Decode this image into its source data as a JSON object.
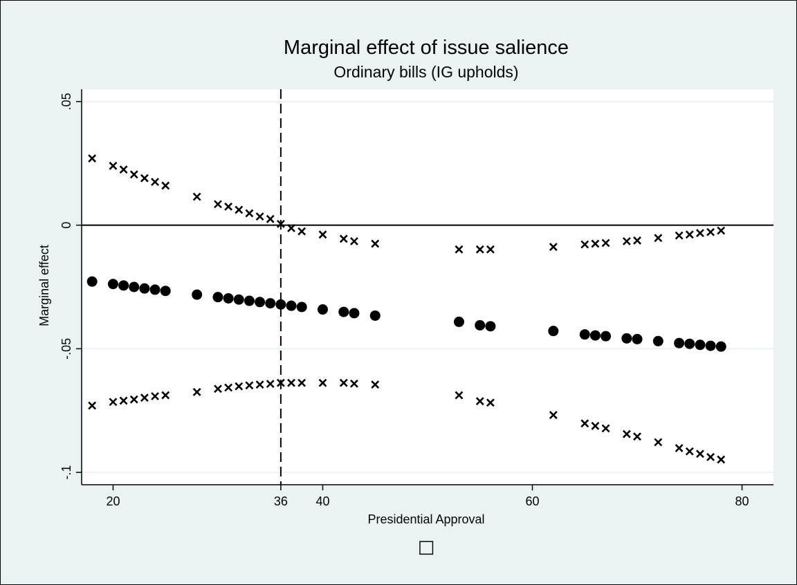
{
  "chart_data": {
    "type": "scatter",
    "title": "Marginal effect of issue salience",
    "subtitle": "Ordinary bills (IG upholds)",
    "xlabel": "Presidential Approval",
    "ylabel": "Marginal effect",
    "xlim": [
      17,
      83
    ],
    "ylim": [
      -0.105,
      0.055
    ],
    "x_ticks": [
      20,
      36,
      40,
      60,
      80
    ],
    "x_tick_labels": [
      "20",
      "36",
      "40",
      "60",
      "80"
    ],
    "y_ticks": [
      0.05,
      0,
      -0.05,
      -0.1
    ],
    "y_tick_labels": [
      ".05",
      "0",
      "-.05",
      "-.1"
    ],
    "grid": true,
    "reference_lines": {
      "horizontal_y": 0,
      "vertical_x_dashed": 36
    },
    "colors": {
      "outer_background": "#eaf2f3",
      "plot_background": "#ffffff",
      "marker": "#000000",
      "grid": "#eaf2f3"
    },
    "legend_symbol": "□",
    "x": [
      18,
      20,
      21,
      22,
      23,
      24,
      25,
      28,
      30,
      31,
      32,
      33,
      34,
      35,
      36,
      37,
      38,
      40,
      42,
      43,
      45,
      53,
      55,
      56,
      62,
      65,
      66,
      67,
      69,
      70,
      72,
      74,
      75,
      76,
      77,
      78
    ],
    "series": [
      {
        "marker": "x",
        "values": [
          0.027,
          0.024,
          0.0225,
          0.0205,
          0.019,
          0.0175,
          0.016,
          0.0115,
          0.0085,
          0.0075,
          0.0062,
          0.0048,
          0.0035,
          0.0025,
          0.0005,
          -0.0012,
          -0.0025,
          -0.0038,
          -0.0055,
          -0.0065,
          -0.0075,
          -0.0098,
          -0.0098,
          -0.0098,
          -0.0088,
          -0.0078,
          -0.0075,
          -0.0072,
          -0.0065,
          -0.0062,
          -0.0052,
          -0.0042,
          -0.0038,
          -0.0032,
          -0.0028,
          -0.0022
        ]
      },
      {
        "marker": "dot",
        "values": [
          -0.0228,
          -0.0238,
          -0.0244,
          -0.025,
          -0.0256,
          -0.0261,
          -0.0266,
          -0.0281,
          -0.0291,
          -0.0296,
          -0.0301,
          -0.0306,
          -0.0311,
          -0.0316,
          -0.0321,
          -0.0326,
          -0.0331,
          -0.0341,
          -0.0351,
          -0.0356,
          -0.0366,
          -0.0391,
          -0.0405,
          -0.0409,
          -0.0428,
          -0.0442,
          -0.0446,
          -0.0449,
          -0.0458,
          -0.0461,
          -0.0469,
          -0.0477,
          -0.048,
          -0.0484,
          -0.0488,
          -0.0491
        ]
      },
      {
        "marker": "x",
        "values": [
          -0.073,
          -0.0715,
          -0.071,
          -0.0705,
          -0.0698,
          -0.0692,
          -0.0688,
          -0.0675,
          -0.0662,
          -0.0657,
          -0.0652,
          -0.0648,
          -0.0645,
          -0.0642,
          -0.0638,
          -0.0638,
          -0.0638,
          -0.0638,
          -0.0638,
          -0.0641,
          -0.0645,
          -0.0688,
          -0.0712,
          -0.0718,
          -0.0768,
          -0.0802,
          -0.0812,
          -0.0822,
          -0.0845,
          -0.0855,
          -0.0878,
          -0.0902,
          -0.0915,
          -0.0925,
          -0.0938,
          -0.0948
        ]
      }
    ]
  }
}
